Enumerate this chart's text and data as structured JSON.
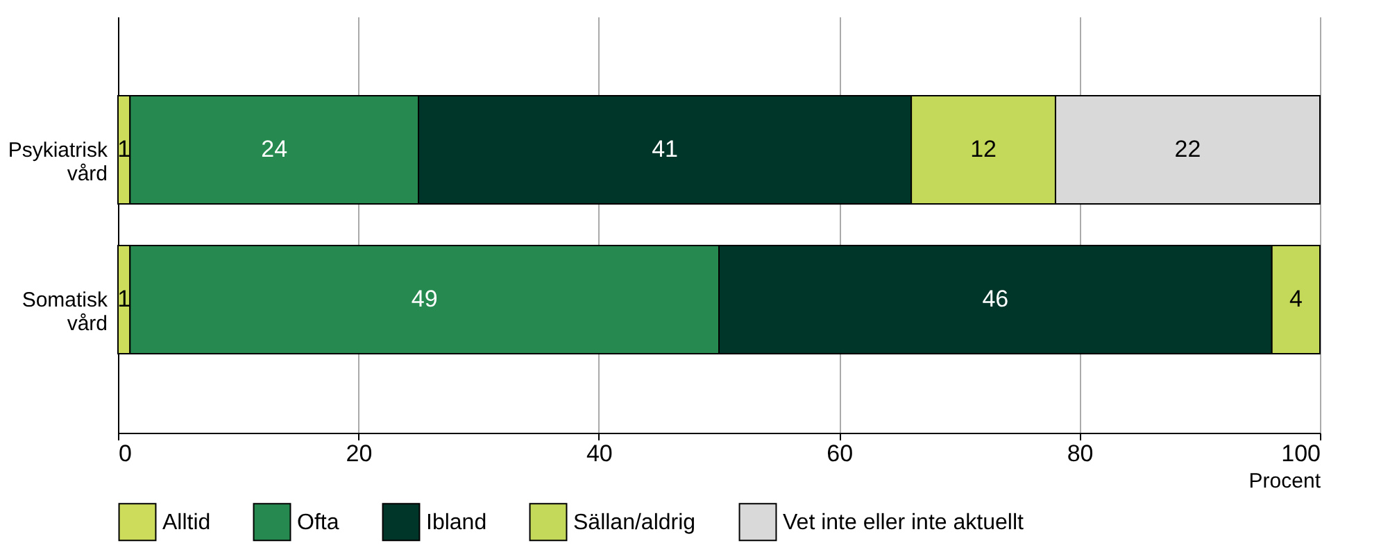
{
  "chart_data": {
    "type": "bar",
    "orientation": "horizontal",
    "stacked": true,
    "data_labels": true,
    "xlabel": "Procent",
    "categories": [
      "Psykiatrisk vård",
      "Somatisk vård"
    ],
    "series": [
      {
        "name": "Alltid",
        "color": "#cddc5b",
        "values": [
          1,
          1
        ]
      },
      {
        "name": "Ofta",
        "color": "#268a50",
        "values": [
          24,
          49
        ]
      },
      {
        "name": "Ibland",
        "color": "#00352a",
        "values": [
          41,
          46
        ]
      },
      {
        "name": "Sällan/aldrig",
        "color": "#c4d85a",
        "values": [
          12,
          4
        ]
      },
      {
        "name": "Vet inte eller inte aktuellt",
        "color": "#d9d9d9",
        "values": [
          22,
          null
        ]
      }
    ],
    "xlim": [
      0,
      100
    ],
    "xticks": [
      0,
      20,
      40,
      60,
      80,
      100
    ],
    "grid": "x",
    "legend": "bottom"
  }
}
